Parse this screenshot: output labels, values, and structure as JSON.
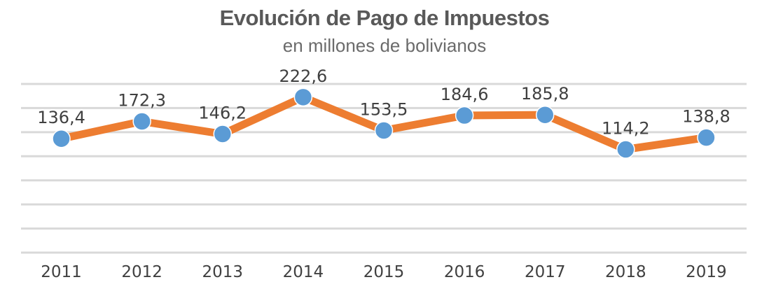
{
  "chart_data": {
    "type": "line",
    "title": "Evolución de Pago de Impuestos",
    "subtitle": "en millones de bolivianos",
    "categories": [
      "2011",
      "2012",
      "2013",
      "2014",
      "2015",
      "2016",
      "2017",
      "2018",
      "2019"
    ],
    "series": [
      {
        "values": [
          136.4,
          172.3,
          146.2,
          222.6,
          153.5,
          184.6,
          185.8,
          114.2,
          138.8
        ],
        "labels": [
          "136,4",
          "172,3",
          "146,2",
          "222,6",
          "153,5",
          "184,6",
          "185,8",
          "114,2",
          "138,8"
        ]
      }
    ],
    "ylim": [
      -100,
      250
    ],
    "grid": true,
    "y_axis_visible": false,
    "legend": "none",
    "colors": {
      "line": "#ED7D31",
      "marker": "#5B9BD5",
      "grid": "#D9D9D9",
      "title": "#595959",
      "text": "#404040"
    }
  }
}
